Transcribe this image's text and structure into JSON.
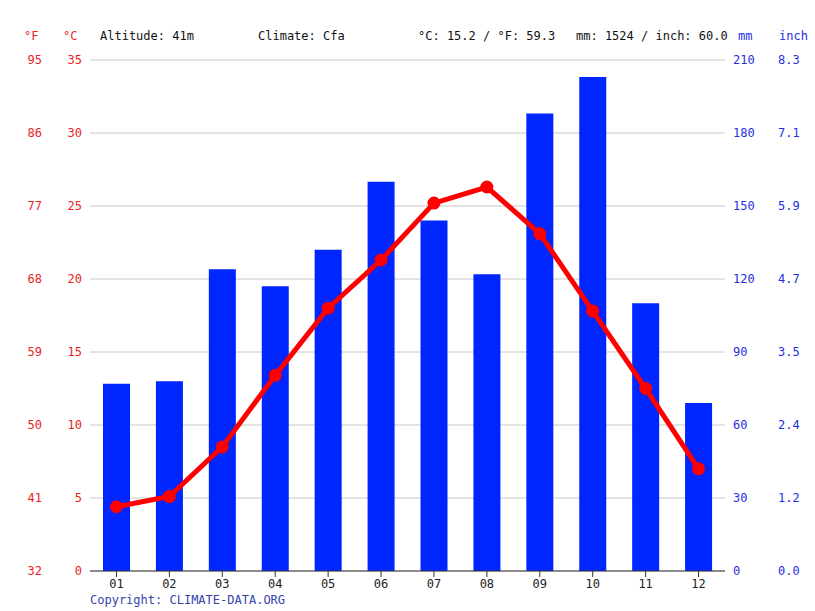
{
  "chart_data": {
    "type": "bar_line",
    "categories": [
      "01",
      "02",
      "03",
      "04",
      "05",
      "06",
      "07",
      "08",
      "09",
      "10",
      "11",
      "12"
    ],
    "series": [
      {
        "type": "bar",
        "axis": "y2",
        "color": "#0026ff",
        "values": [
          77,
          78,
          124,
          117,
          132,
          160,
          144,
          122,
          188,
          203,
          110,
          69
        ]
      },
      {
        "type": "line",
        "axis": "y",
        "color": "#ff0000",
        "marker": "circle",
        "line_style": "solid",
        "values": [
          4.4,
          5.1,
          8.5,
          13.4,
          18.0,
          21.3,
          25.2,
          26.3,
          23.1,
          17.8,
          12.5,
          7.0
        ]
      }
    ],
    "y_label": "°C",
    "y2_label": "mm",
    "y3_label": "°F",
    "y4_label": "inch",
    "ylim": [
      0,
      35
    ],
    "yticks": [
      0,
      5,
      10,
      15,
      20,
      25,
      30,
      35
    ],
    "y2lim": [
      0,
      210
    ],
    "y2ticks": [
      0,
      30,
      60,
      90,
      120,
      150,
      180,
      210
    ],
    "y3lim": [
      32,
      95
    ],
    "y3ticks": [
      32,
      41,
      50,
      59,
      68,
      77,
      86,
      95
    ],
    "y4lim": [
      0,
      8.268
    ],
    "y4ticks": [
      {
        "value": 0,
        "label": "0.0"
      },
      {
        "value": 1.181,
        "label": "1.2"
      },
      {
        "value": 2.362,
        "label": "2.4"
      },
      {
        "value": 3.543,
        "label": "3.5"
      },
      {
        "value": 4.724,
        "label": "4.7"
      },
      {
        "value": 5.906,
        "label": "5.9"
      },
      {
        "value": 7.087,
        "label": "7.1"
      },
      {
        "value": 8.268,
        "label": "8.3"
      }
    ],
    "annotations": [
      "Altitude: 41m",
      "Climate: Cfa",
      "°C: 15.2 / °F: 59.3",
      "mm: 1524 / inch: 60.0",
      "Copyright: CLIMATE-DATA.ORG"
    ],
    "grid": true
  }
}
